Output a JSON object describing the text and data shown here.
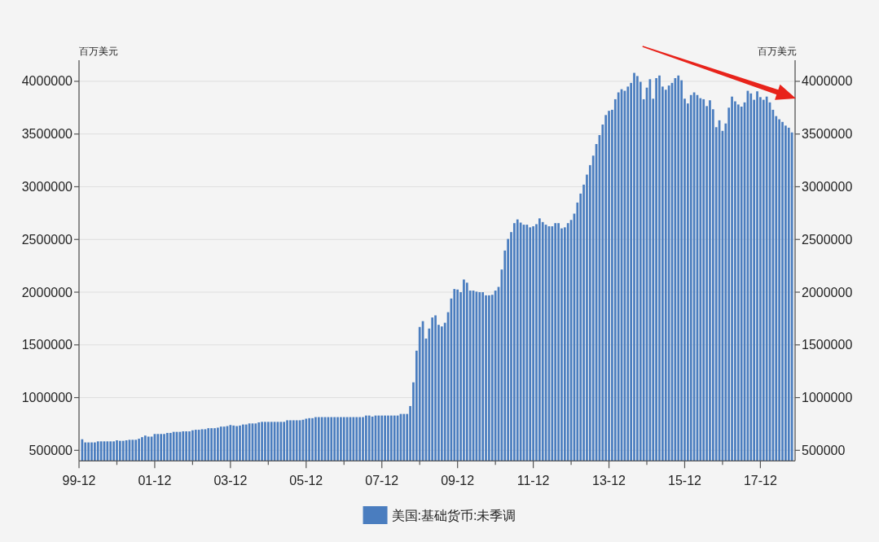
{
  "chart_data": {
    "type": "bar",
    "x": [
      "2000-01",
      "2000-02",
      "2000-03",
      "2000-04",
      "2000-05",
      "2000-06",
      "2000-07",
      "2000-08",
      "2000-09",
      "2000-10",
      "2000-11",
      "2000-12",
      "2001-01",
      "2001-02",
      "2001-03",
      "2001-04",
      "2001-05",
      "2001-06",
      "2001-07",
      "2001-08",
      "2001-09",
      "2001-10",
      "2001-11",
      "2001-12",
      "2002-01",
      "2002-02",
      "2002-03",
      "2002-04",
      "2002-05",
      "2002-06",
      "2002-07",
      "2002-08",
      "2002-09",
      "2002-10",
      "2002-11",
      "2002-12",
      "2003-01",
      "2003-02",
      "2003-03",
      "2003-04",
      "2003-05",
      "2003-06",
      "2003-07",
      "2003-08",
      "2003-09",
      "2003-10",
      "2003-11",
      "2003-12",
      "2004-01",
      "2004-02",
      "2004-03",
      "2004-04",
      "2004-05",
      "2004-06",
      "2004-07",
      "2004-08",
      "2004-09",
      "2004-10",
      "2004-11",
      "2004-12",
      "2005-01",
      "2005-02",
      "2005-03",
      "2005-04",
      "2005-05",
      "2005-06",
      "2005-07",
      "2005-08",
      "2005-09",
      "2005-10",
      "2005-11",
      "2005-12",
      "2006-01",
      "2006-02",
      "2006-03",
      "2006-04",
      "2006-05",
      "2006-06",
      "2006-07",
      "2006-08",
      "2006-09",
      "2006-10",
      "2006-11",
      "2006-12",
      "2007-01",
      "2007-02",
      "2007-03",
      "2007-04",
      "2007-05",
      "2007-06",
      "2007-07",
      "2007-08",
      "2007-09",
      "2007-10",
      "2007-11",
      "2007-12",
      "2008-01",
      "2008-02",
      "2008-03",
      "2008-04",
      "2008-05",
      "2008-06",
      "2008-07",
      "2008-08",
      "2008-09",
      "2008-10",
      "2008-11",
      "2008-12",
      "2009-01",
      "2009-02",
      "2009-03",
      "2009-04",
      "2009-05",
      "2009-06",
      "2009-07",
      "2009-08",
      "2009-09",
      "2009-10",
      "2009-11",
      "2009-12",
      "2010-01",
      "2010-02",
      "2010-03",
      "2010-04",
      "2010-05",
      "2010-06",
      "2010-07",
      "2010-08",
      "2010-09",
      "2010-10",
      "2010-11",
      "2010-12",
      "2011-01",
      "2011-02",
      "2011-03",
      "2011-04",
      "2011-05",
      "2011-06",
      "2011-07",
      "2011-08",
      "2011-09",
      "2011-10",
      "2011-11",
      "2011-12",
      "2012-01",
      "2012-02",
      "2012-03",
      "2012-04",
      "2012-05",
      "2012-06",
      "2012-07",
      "2012-08",
      "2012-09",
      "2012-10",
      "2012-11",
      "2012-12",
      "2013-01",
      "2013-02",
      "2013-03",
      "2013-04",
      "2013-05",
      "2013-06",
      "2013-07",
      "2013-08",
      "2013-09",
      "2013-10",
      "2013-11",
      "2013-12",
      "2014-01",
      "2014-02",
      "2014-03",
      "2014-04",
      "2014-05",
      "2014-06",
      "2014-07",
      "2014-08",
      "2014-09",
      "2014-10",
      "2014-11",
      "2014-12",
      "2015-01",
      "2015-02",
      "2015-03",
      "2015-04",
      "2015-05",
      "2015-06",
      "2015-07",
      "2015-08",
      "2015-09",
      "2015-10",
      "2015-11",
      "2015-12",
      "2016-01",
      "2016-02",
      "2016-03",
      "2016-04",
      "2016-05",
      "2016-06",
      "2016-07",
      "2016-08",
      "2016-09",
      "2016-10",
      "2016-11",
      "2016-12",
      "2017-01",
      "2017-02",
      "2017-03",
      "2017-04",
      "2017-05",
      "2017-06",
      "2017-07",
      "2017-08",
      "2017-09",
      "2017-10",
      "2017-11",
      "2017-12",
      "2018-01",
      "2018-02",
      "2018-03",
      "2018-04",
      "2018-05",
      "2018-06",
      "2018-07",
      "2018-08",
      "2018-09",
      "2018-10"
    ],
    "series": [
      {
        "name": "美国:基础货币:未季调",
        "color": "#4a7dbf",
        "values": [
          605000,
          575000,
          575000,
          575000,
          575000,
          585000,
          585000,
          585000,
          585000,
          585000,
          585000,
          595000,
          590000,
          590000,
          595000,
          600000,
          600000,
          600000,
          610000,
          625000,
          640000,
          630000,
          630000,
          655000,
          655000,
          655000,
          655000,
          665000,
          665000,
          675000,
          675000,
          675000,
          680000,
          680000,
          680000,
          690000,
          695000,
          695000,
          700000,
          700000,
          710000,
          710000,
          710000,
          715000,
          725000,
          725000,
          730000,
          740000,
          735000,
          730000,
          735000,
          745000,
          745000,
          755000,
          755000,
          755000,
          765000,
          770000,
          770000,
          770000,
          770000,
          770000,
          770000,
          770000,
          770000,
          785000,
          785000,
          785000,
          785000,
          785000,
          790000,
          800000,
          805000,
          805000,
          815000,
          815000,
          815000,
          815000,
          815000,
          815000,
          815000,
          815000,
          815000,
          815000,
          815000,
          815000,
          815000,
          815000,
          815000,
          815000,
          830000,
          830000,
          820000,
          830000,
          830000,
          830000,
          830000,
          830000,
          830000,
          830000,
          830000,
          845000,
          845000,
          845000,
          920000,
          1145000,
          1445000,
          1670000,
          1725000,
          1560000,
          1655000,
          1760000,
          1780000,
          1690000,
          1675000,
          1710000,
          1810000,
          1940000,
          2030000,
          2025000,
          2000000,
          2120000,
          2090000,
          2015000,
          2015000,
          2005000,
          2000000,
          2000000,
          1970000,
          1970000,
          1975000,
          2015000,
          2050000,
          2215000,
          2395000,
          2505000,
          2570000,
          2655000,
          2690000,
          2660000,
          2640000,
          2640000,
          2615000,
          2625000,
          2645000,
          2700000,
          2665000,
          2640000,
          2625000,
          2625000,
          2655000,
          2655000,
          2605000,
          2615000,
          2655000,
          2685000,
          2745000,
          2850000,
          2935000,
          3020000,
          3115000,
          3205000,
          3295000,
          3405000,
          3490000,
          3590000,
          3680000,
          3720000,
          3730000,
          3830000,
          3895000,
          3925000,
          3910000,
          3950000,
          3985000,
          4080000,
          4050000,
          3995000,
          3830000,
          3940000,
          4020000,
          3835000,
          4030000,
          4055000,
          3950000,
          3920000,
          3960000,
          3985000,
          4030000,
          4055000,
          4010000,
          3835000,
          3790000,
          3870000,
          3895000,
          3870000,
          3840000,
          3830000,
          3765000,
          3820000,
          3735000,
          3565000,
          3630000,
          3530000,
          3600000,
          3750000,
          3855000,
          3810000,
          3780000,
          3760000,
          3800000,
          3910000,
          3885000,
          3825000,
          3905000,
          3850000,
          3825000,
          3855000,
          3800000,
          3730000,
          3670000,
          3640000,
          3615000,
          3580000,
          3560000,
          3515000
        ]
      }
    ],
    "xlim": [
      "1999-12",
      "2018-11"
    ],
    "xticks": [
      {
        "value": "1999-12",
        "label": "99-12"
      },
      {
        "value": "2000-12",
        "label": null
      },
      {
        "value": "2001-12",
        "label": "01-12"
      },
      {
        "value": "2002-12",
        "label": null
      },
      {
        "value": "2003-12",
        "label": "03-12"
      },
      {
        "value": "2004-12",
        "label": null
      },
      {
        "value": "2005-12",
        "label": "05-12"
      },
      {
        "value": "2006-12",
        "label": null
      },
      {
        "value": "2007-12",
        "label": "07-12"
      },
      {
        "value": "2008-12",
        "label": null
      },
      {
        "value": "2009-12",
        "label": "09-12"
      },
      {
        "value": "2010-12",
        "label": null
      },
      {
        "value": "2011-12",
        "label": "11-12"
      },
      {
        "value": "2012-12",
        "label": null
      },
      {
        "value": "2013-12",
        "label": "13-12"
      },
      {
        "value": "2014-12",
        "label": null
      },
      {
        "value": "2015-12",
        "label": "15-12"
      },
      {
        "value": "2016-12",
        "label": null
      },
      {
        "value": "2017-12",
        "label": "17-12"
      }
    ],
    "ylim": [
      400000,
      4200000
    ],
    "yticks": [
      500000,
      1000000,
      1500000,
      2000000,
      2500000,
      3000000,
      3500000,
      4000000
    ],
    "y2lim": [
      400000,
      4200000
    ],
    "y2ticks": [
      500000,
      1000000,
      1500000,
      2000000,
      2500000,
      3000000,
      3500000,
      4000000
    ],
    "ylabel": "百万美元",
    "y2label": "百万美元",
    "grid": "y",
    "legend": "bottom"
  }
}
